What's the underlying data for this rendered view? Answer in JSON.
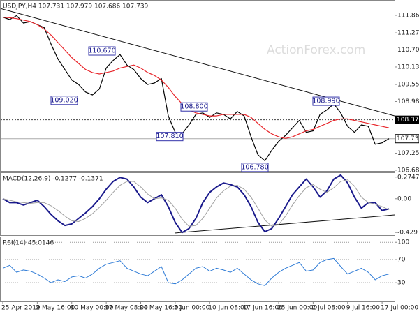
{
  "chart_data": [
    {
      "type": "line",
      "title": "USDJPY,H4  107.731 107.979 107.686 107.739",
      "watermark": "ActionForex.com",
      "series": [
        {
          "color": "#000000",
          "values": [
            111.8,
            111.72,
            111.85,
            111.6,
            111.65,
            111.55,
            111.45,
            110.9,
            110.4,
            110.05,
            109.7,
            109.55,
            109.3,
            109.2,
            109.4,
            110.1,
            110.35,
            110.55,
            110.2,
            110.05,
            109.75,
            109.55,
            109.6,
            109.75,
            108.5,
            107.95,
            107.9,
            108.2,
            108.55,
            108.6,
            108.45,
            108.6,
            108.55,
            108.4,
            108.65,
            108.5,
            107.8,
            107.2,
            107.0,
            107.35,
            107.65,
            107.85,
            108.1,
            108.35,
            107.95,
            108.0,
            108.55,
            108.7,
            108.9,
            108.6,
            108.15,
            107.95,
            108.2,
            108.15,
            107.55,
            107.6,
            107.739
          ]
        },
        {
          "color": "#e8262b",
          "values": [
            111.8,
            111.78,
            111.75,
            111.7,
            111.65,
            111.55,
            111.4,
            111.2,
            110.95,
            110.7,
            110.45,
            110.25,
            110.05,
            109.95,
            109.9,
            109.95,
            110.0,
            110.1,
            110.15,
            110.2,
            110.1,
            109.95,
            109.85,
            109.7,
            109.45,
            109.15,
            108.9,
            108.7,
            108.6,
            108.55,
            108.5,
            108.5,
            108.55,
            108.55,
            108.55,
            108.55,
            108.45,
            108.25,
            108.05,
            107.9,
            107.8,
            107.75,
            107.8,
            107.9,
            108.0,
            108.05,
            108.15,
            108.25,
            108.35,
            108.4,
            108.4,
            108.35,
            108.3,
            108.25,
            108.2,
            108.15,
            108.1
          ]
        }
      ],
      "ylim": [
        106.66,
        112.256
      ],
      "yticks": [
        {
          "value": 111.86,
          "label": "111.860"
        },
        111.275,
        110.705,
        110.135,
        {
          "value": 109.55,
          "label": "109.550"
        },
        {
          "value": 108.98,
          "label": "108.980"
        },
        {
          "value": 108.37,
          "label": "108.370",
          "line": "dashed"
        },
        107.255,
        106.685,
        {
          "value": 107.739,
          "label": "107.739",
          "line": "solid"
        }
      ],
      "annotations": [
        {
          "value": 110.67,
          "label": "110.670"
        },
        {
          "value": 109.02,
          "label": "109.020"
        },
        {
          "value": 108.8,
          "label": "108.800"
        },
        {
          "value": 107.81,
          "label": "107.810"
        },
        {
          "value": 108.99,
          "label": "108.990"
        },
        {
          "value": 106.78,
          "label": "106.780"
        }
      ]
    },
    {
      "type": "line",
      "title": "MACD(12,26,9) -0.1277 -0.1371",
      "series": [
        {
          "color": "#1a1a8c",
          "width": 2,
          "values": [
            0.0,
            -0.05,
            -0.05,
            -0.08,
            -0.05,
            -0.02,
            -0.1,
            -0.2,
            -0.28,
            -0.34,
            -0.32,
            -0.25,
            -0.18,
            -0.1,
            0.0,
            0.12,
            0.22,
            0.27,
            0.25,
            0.15,
            0.02,
            -0.05,
            0.0,
            0.05,
            -0.1,
            -0.3,
            -0.43,
            -0.38,
            -0.25,
            -0.05,
            0.08,
            0.15,
            0.2,
            0.18,
            0.15,
            0.05,
            -0.1,
            -0.3,
            -0.42,
            -0.38,
            -0.25,
            -0.1,
            0.05,
            0.15,
            0.25,
            0.15,
            0.02,
            0.1,
            0.25,
            0.3,
            0.2,
            0.02,
            -0.12,
            -0.05,
            -0.05,
            -0.15,
            -0.13
          ]
        },
        {
          "color": "#a0a0a0",
          "width": 1,
          "values": [
            0.0,
            -0.02,
            -0.04,
            -0.05,
            -0.06,
            -0.05,
            -0.05,
            -0.09,
            -0.15,
            -0.22,
            -0.28,
            -0.29,
            -0.25,
            -0.19,
            -0.11,
            -0.02,
            0.08,
            0.17,
            0.22,
            0.22,
            0.15,
            0.06,
            0.0,
            0.01,
            -0.02,
            -0.12,
            -0.26,
            -0.35,
            -0.34,
            -0.25,
            -0.12,
            0.01,
            0.1,
            0.16,
            0.17,
            0.12,
            0.02,
            -0.12,
            -0.27,
            -0.35,
            -0.33,
            -0.22,
            -0.08,
            0.04,
            0.14,
            0.18,
            0.12,
            0.08,
            0.14,
            0.22,
            0.24,
            0.16,
            0.02,
            -0.05,
            -0.07,
            -0.1,
            -0.14
          ]
        }
      ],
      "ylim": [
        -0.463,
        0.326
      ],
      "yticks": [
        0.2747,
        {
          "value": 0,
          "label": "0.00"
        },
        -0.429
      ]
    },
    {
      "type": "line",
      "title": "RSI(14) 45.0146",
      "grid": true,
      "series": [
        {
          "color": "#2e7bd6",
          "width": 1,
          "values": [
            55,
            60,
            48,
            52,
            50,
            45,
            38,
            30,
            35,
            32,
            40,
            42,
            38,
            45,
            55,
            62,
            65,
            68,
            55,
            50,
            45,
            42,
            50,
            58,
            30,
            28,
            35,
            45,
            55,
            58,
            50,
            55,
            52,
            48,
            55,
            45,
            35,
            28,
            25,
            38,
            48,
            55,
            60,
            65,
            50,
            52,
            65,
            70,
            72,
            58,
            45,
            50,
            55,
            48,
            35,
            42,
            45
          ]
        }
      ],
      "ylim": [
        -2.5,
        108.75
      ],
      "yticks": [
        100,
        70,
        30
      ],
      "categories": [
        "25 Apr 2019",
        null,
        null,
        null,
        null,
        "2 May 16:00",
        null,
        null,
        null,
        null,
        "10 May 00:00",
        null,
        null,
        null,
        null,
        "17 May 08:00",
        null,
        null,
        null,
        null,
        "24 May 16:00",
        null,
        null,
        null,
        null,
        "3 Jun 00:00",
        null,
        null,
        null,
        null,
        "10 Jun 08:00",
        null,
        null,
        null,
        null,
        "17 Jun 16:00",
        null,
        null,
        null,
        null,
        "25 Jun 00:00",
        null,
        null,
        null,
        null,
        "2 Jul 08:00",
        null,
        null,
        null,
        null,
        "9 Jul 16:00",
        null,
        null,
        null,
        null,
        "17 Jul 00:00",
        null
      ]
    }
  ]
}
